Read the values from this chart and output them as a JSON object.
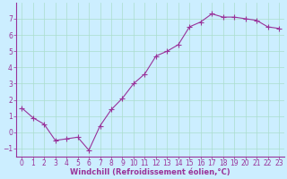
{
  "x": [
    0,
    1,
    2,
    3,
    4,
    5,
    6,
    7,
    8,
    9,
    10,
    11,
    12,
    13,
    14,
    15,
    16,
    17,
    18,
    19,
    20,
    21,
    22,
    23
  ],
  "y": [
    1.5,
    0.9,
    0.5,
    -0.5,
    -0.4,
    -0.3,
    -1.1,
    0.4,
    1.4,
    2.1,
    3.0,
    3.6,
    4.7,
    5.0,
    5.4,
    6.5,
    6.8,
    7.3,
    7.1,
    7.1,
    7.0,
    6.9,
    6.5,
    6.4
  ],
  "line_color": "#993399",
  "marker": "+",
  "marker_size": 4,
  "line_width": 0.8,
  "bg_color": "#cceeff",
  "grid_color": "#aaddcc",
  "xlabel": "Windchill (Refroidissement éolien,°C)",
  "xlabel_color": "#993399",
  "xlabel_fontsize": 6,
  "tick_color": "#993399",
  "tick_fontsize": 5.5,
  "ylim": [
    -1.5,
    8.0
  ],
  "xlim": [
    -0.5,
    23.5
  ],
  "yticks": [
    -1,
    0,
    1,
    2,
    3,
    4,
    5,
    6,
    7
  ],
  "xticks": [
    0,
    1,
    2,
    3,
    4,
    5,
    6,
    7,
    8,
    9,
    10,
    11,
    12,
    13,
    14,
    15,
    16,
    17,
    18,
    19,
    20,
    21,
    22,
    23
  ],
  "spine_color": "#993399"
}
